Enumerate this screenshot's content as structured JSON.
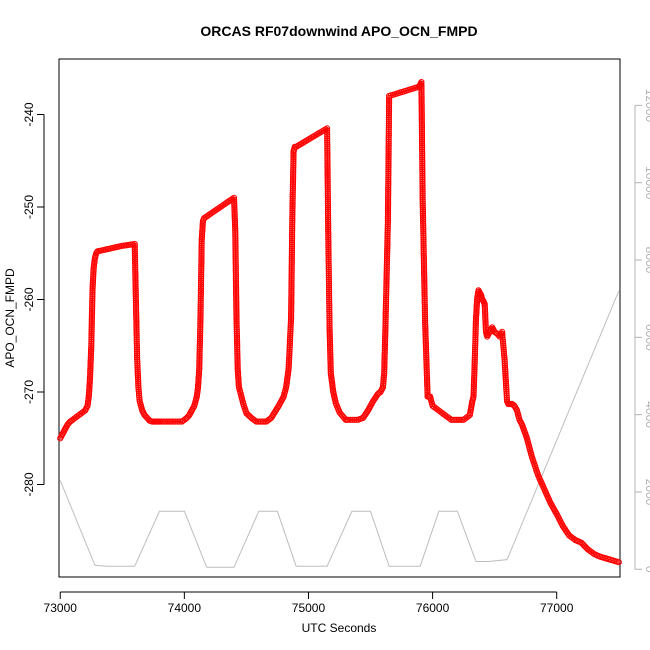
{
  "chart_data": {
    "type": "scatter",
    "title": "ORCAS RF07downwind APO_OCN_FMPD",
    "xlabel": "UTC Seconds",
    "ylabel": "APO_OCN_FMPD",
    "xlim": [
      72990,
      77510
    ],
    "ylim": [
      -290,
      -234
    ],
    "y2lim": [
      -200,
      13200
    ],
    "x_ticks": [
      73000,
      74000,
      75000,
      76000,
      77000
    ],
    "y_ticks": [
      -280,
      -270,
      -260,
      -250,
      -240
    ],
    "y2_ticks": [
      0,
      2000,
      4000,
      6000,
      8000,
      10000,
      12000
    ],
    "grid": false,
    "legend": "none",
    "colors": {
      "primary": "#ff0000",
      "secondary": "#bebebe"
    },
    "series": [
      {
        "style": "points+line",
        "axis": "left",
        "x": [
          73000,
          73020,
          73040,
          73060,
          73080,
          73100,
          73150,
          73200,
          73220,
          73230,
          73240,
          73250,
          73260,
          73270,
          73280,
          73290,
          73300,
          73400,
          73500,
          73600,
          73610,
          73620,
          73630,
          73640,
          73660,
          73680,
          73700,
          73720,
          73740,
          73760,
          73780,
          73800,
          73900,
          73980,
          74000,
          74020,
          74040,
          74060,
          74080,
          74100,
          74110,
          74120,
          74130,
          74140,
          74150,
          74160,
          74400,
          74410,
          74420,
          74430,
          74440,
          74460,
          74480,
          74500,
          74540,
          74580,
          74620,
          74660,
          74700,
          74760,
          74800,
          74820,
          74840,
          74860,
          74870,
          74880,
          74890,
          74900,
          75150,
          75160,
          75170,
          75180,
          75200,
          75220,
          75250,
          75300,
          75320,
          75400,
          75440,
          75480,
          75520,
          75560,
          75580,
          75600,
          75610,
          75620,
          75640,
          75650,
          75890,
          75900,
          75910,
          75920,
          75940,
          75960,
          75980,
          76000,
          76100,
          76150,
          76200,
          76250,
          76300,
          76320,
          76330,
          76340,
          76350,
          76360,
          76370,
          76380,
          76390,
          76400,
          76410,
          76420,
          76430,
          76440,
          76460,
          76480,
          76500,
          76520,
          76540,
          76560,
          76580,
          76600,
          76610,
          76620,
          76640,
          76660,
          76680,
          76700,
          76720,
          76760,
          76800,
          76850,
          76900,
          76950,
          77000,
          77050,
          77100,
          77150,
          77200,
          77250,
          77300,
          77350,
          77400,
          77450,
          77500
        ],
        "y": [
          -275,
          -274.5,
          -274,
          -273.5,
          -273.2,
          -273,
          -272.5,
          -272,
          -271.5,
          -270.5,
          -268.5,
          -265,
          -259,
          -256.5,
          -255.5,
          -255,
          -254.8,
          -254.5,
          -254.2,
          -254,
          -260.5,
          -266.5,
          -269.5,
          -271,
          -272,
          -272.5,
          -272.8,
          -273.1,
          -273.2,
          -273.2,
          -273.2,
          -273.2,
          -273.2,
          -273.2,
          -273,
          -272.8,
          -272.5,
          -272,
          -271.5,
          -270.5,
          -269.5,
          -267.5,
          -262,
          -253.5,
          -251.5,
          -251.2,
          -249,
          -252.5,
          -262,
          -267.5,
          -269.5,
          -270.5,
          -271.5,
          -272.3,
          -272.8,
          -273.2,
          -273.2,
          -273.2,
          -272.8,
          -271.5,
          -270.5,
          -269.5,
          -267.5,
          -262,
          -251,
          -244,
          -243.5,
          -243.5,
          -241.5,
          -253.5,
          -263,
          -268,
          -270,
          -271.2,
          -272.2,
          -273,
          -273,
          -273,
          -272.8,
          -272,
          -271,
          -270.2,
          -270,
          -269.5,
          -268,
          -263,
          -251.5,
          -238,
          -237,
          -236.8,
          -236.5,
          -249.2,
          -262.5,
          -270.5,
          -270.5,
          -271.5,
          -272.5,
          -273,
          -273,
          -273,
          -272.5,
          -271,
          -270.5,
          -266.5,
          -262,
          -259.8,
          -259,
          -259.3,
          -259.5,
          -260,
          -260.2,
          -260.5,
          -263.5,
          -264,
          -263.5,
          -263,
          -263.5,
          -263.7,
          -264,
          -263.5,
          -266.5,
          -271,
          -271.3,
          -271.3,
          -271.3,
          -271.5,
          -272,
          -273,
          -273.5,
          -275,
          -277,
          -279,
          -280.5,
          -282,
          -283.2,
          -284.5,
          -285.5,
          -286,
          -286.3,
          -287,
          -287.5,
          -287.8,
          -288,
          -288.2,
          -288.4
        ]
      },
      {
        "style": "line",
        "axis": "right",
        "x": [
          73000,
          73280,
          73380,
          73600,
          73800,
          74000,
          74180,
          74400,
          74600,
          74750,
          74900,
          75150,
          75350,
          75500,
          75650,
          75900,
          76050,
          76200,
          76350,
          76450,
          76600,
          77500
        ],
        "y": [
          2300,
          100,
          80,
          80,
          1500,
          1500,
          50,
          50,
          1500,
          1500,
          80,
          80,
          1500,
          1500,
          80,
          80,
          1500,
          1500,
          200,
          200,
          250,
          7200
        ]
      }
    ]
  }
}
